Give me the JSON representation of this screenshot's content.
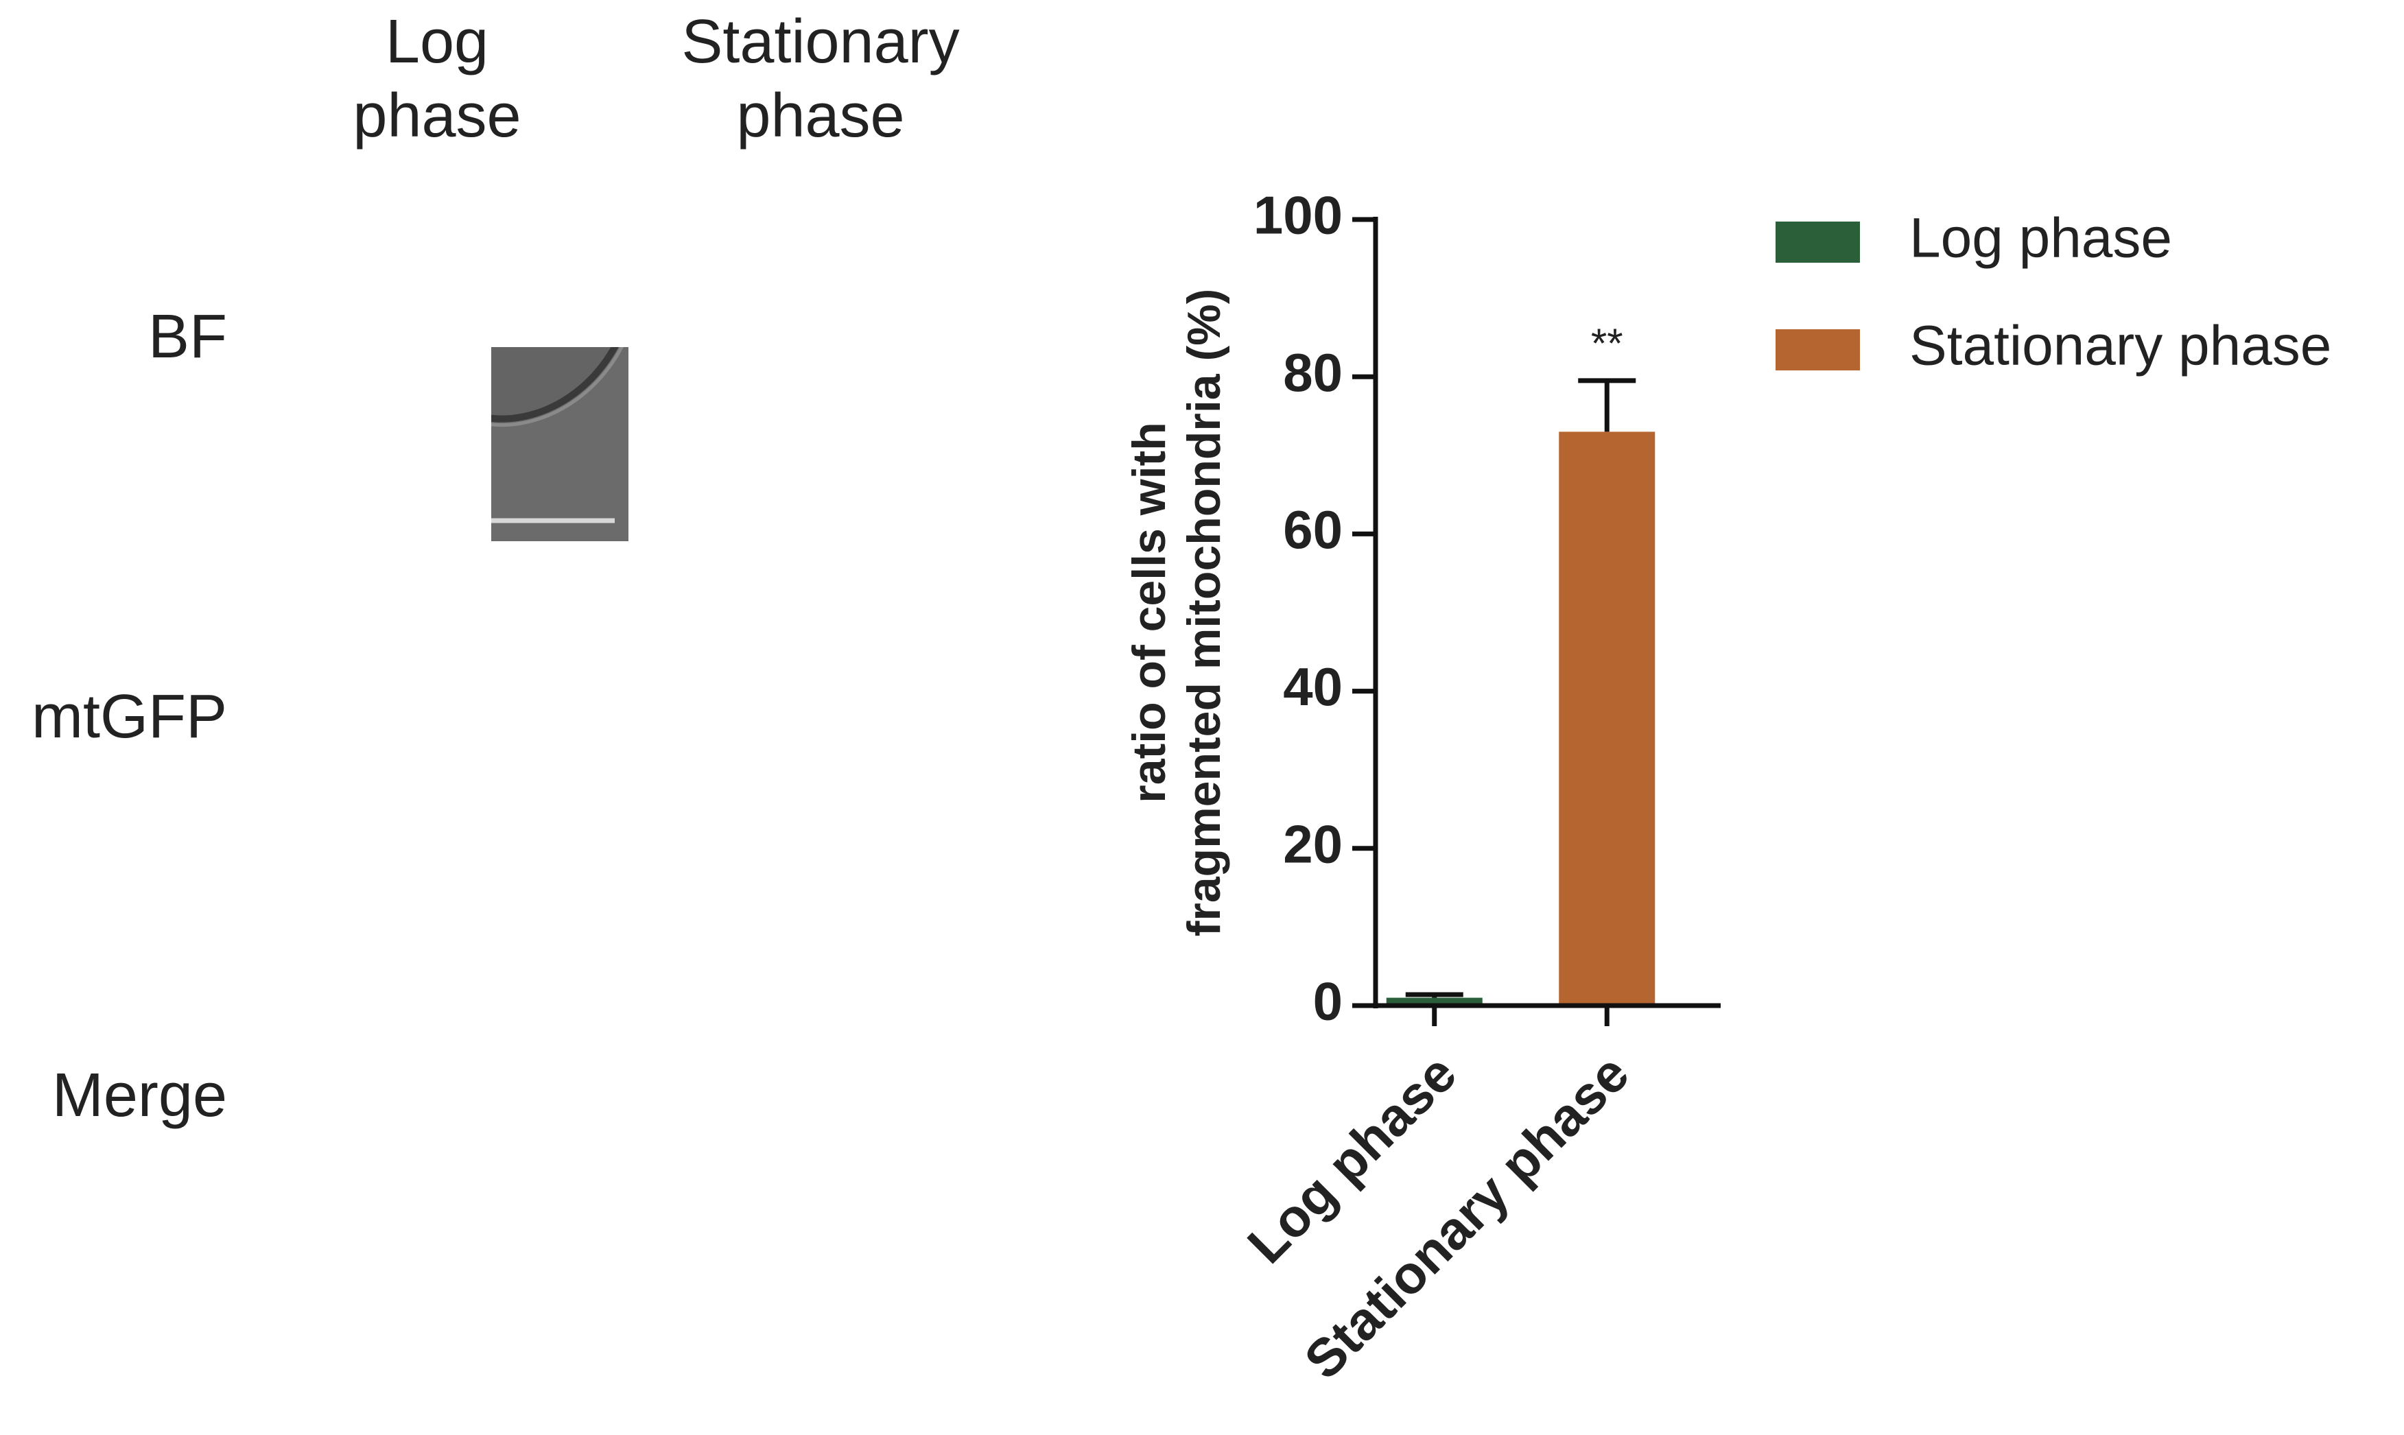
{
  "image_panel": {
    "column_labels": [
      [
        "Log",
        "phase"
      ],
      [
        "Stationary",
        "phase"
      ]
    ],
    "row_labels": [
      "BF",
      "mtGFP",
      "Merge"
    ]
  },
  "chart_data": {
    "type": "bar",
    "ylabel": [
      "ratio of cells with",
      "fragmented mitochondria (%)"
    ],
    "categories": [
      "Log phase",
      "Stationary phase"
    ],
    "series": [
      {
        "name": "Log phase",
        "color": "#2a5f3a",
        "values": [
          1,
          null
        ],
        "errors": [
          0.4,
          null
        ]
      },
      {
        "name": "Stationary phase",
        "color": "#b5652f",
        "values": [
          null,
          73
        ],
        "errors": [
          null,
          6.5
        ]
      }
    ],
    "annotation": "**",
    "ylim": [
      0,
      100
    ],
    "yticks": [
      0,
      20,
      40,
      60,
      80,
      100
    ]
  }
}
